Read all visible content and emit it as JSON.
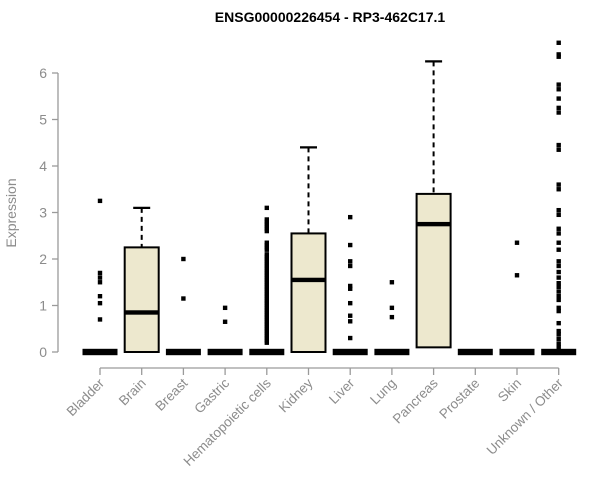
{
  "chart_data": {
    "type": "boxplot",
    "title": "ENSG00000226454 - RP3-462C17.1",
    "ylabel": "Expression",
    "xlabel": "",
    "ylim": [
      0,
      6.7
    ],
    "yticks": [
      0,
      1,
      2,
      3,
      4,
      5,
      6
    ],
    "grid": false,
    "legend": false,
    "categories": [
      "Bladder",
      "Brain",
      "Breast",
      "Gastric",
      "Hematopoietic cells",
      "Kidney",
      "Liver",
      "Lung",
      "Pancreas",
      "Prostate",
      "Skin",
      "Unknown / Other"
    ],
    "series": [
      {
        "category": "Bladder",
        "q1": 0,
        "median": 0,
        "q3": 0,
        "whisker_low": 0,
        "whisker_high": 0,
        "outliers": [
          3.25,
          1.7,
          1.6,
          1.5,
          1.2,
          1.05,
          0.7
        ]
      },
      {
        "category": "Brain",
        "q1": 0,
        "median": 0.85,
        "q3": 2.25,
        "whisker_low": 0,
        "whisker_high": 3.1,
        "outliers": []
      },
      {
        "category": "Breast",
        "q1": 0,
        "median": 0,
        "q3": 0,
        "whisker_low": 0,
        "whisker_high": 0,
        "outliers": [
          2.0,
          1.15
        ]
      },
      {
        "category": "Gastric",
        "q1": 0,
        "median": 0,
        "q3": 0,
        "whisker_low": 0,
        "whisker_high": 0,
        "outliers": [
          0.95,
          0.65
        ]
      },
      {
        "category": "Hematopoietic cells",
        "q1": 0,
        "median": 0,
        "q3": 0,
        "whisker_low": 0,
        "whisker_high": 0,
        "outliers": [
          3.1,
          2.85,
          2.8,
          2.75,
          2.7,
          2.65,
          2.6,
          2.35,
          2.3,
          2.25,
          2.2,
          2.1,
          2.05,
          2.0,
          1.95,
          1.9,
          1.85,
          1.8,
          1.75,
          1.7,
          1.65,
          1.6,
          1.55,
          1.5,
          1.45,
          1.4,
          1.35,
          1.3,
          1.25,
          1.2,
          1.15,
          1.1,
          1.05,
          1.0,
          0.95,
          0.9,
          0.85,
          0.8,
          0.75,
          0.7,
          0.65,
          0.6,
          0.55,
          0.5,
          0.45,
          0.4,
          0.35,
          0.3,
          0.25,
          0.2
        ]
      },
      {
        "category": "Kidney",
        "q1": 0,
        "median": 1.55,
        "q3": 2.55,
        "whisker_low": 0,
        "whisker_high": 4.4,
        "outliers": []
      },
      {
        "category": "Liver",
        "q1": 0,
        "median": 0,
        "q3": 0,
        "whisker_low": 0,
        "whisker_high": 0,
        "outliers": [
          2.9,
          2.3,
          1.95,
          1.85,
          1.42,
          1.36,
          1.05,
          0.78,
          0.66,
          0.3
        ]
      },
      {
        "category": "Lung",
        "q1": 0,
        "median": 0,
        "q3": 0,
        "whisker_low": 0,
        "whisker_high": 0,
        "outliers": [
          1.5,
          0.95,
          0.75
        ]
      },
      {
        "category": "Pancreas",
        "q1": 0.1,
        "median": 2.75,
        "q3": 3.4,
        "whisker_low": 0.1,
        "whisker_high": 6.25,
        "outliers": []
      },
      {
        "category": "Prostate",
        "q1": 0,
        "median": 0,
        "q3": 0,
        "whisker_low": 0,
        "whisker_high": 0,
        "outliers": []
      },
      {
        "category": "Skin",
        "q1": 0,
        "median": 0,
        "q3": 0,
        "whisker_low": 0,
        "whisker_high": 0,
        "outliers": [
          2.35,
          1.65
        ]
      },
      {
        "category": "Unknown / Other",
        "q1": 0,
        "median": 0,
        "q3": 0,
        "whisker_low": 0,
        "whisker_high": 0,
        "outliers": [
          6.65,
          6.4,
          6.35,
          5.75,
          5.65,
          5.45,
          5.25,
          5.15,
          4.45,
          4.35,
          3.6,
          3.5,
          3.05,
          2.95,
          2.65,
          2.55,
          2.35,
          2.2,
          1.95,
          1.85,
          1.72,
          1.6,
          1.48,
          1.4,
          1.3,
          1.2,
          1.12,
          0.95,
          0.88,
          0.62,
          0.45,
          0.38,
          0.28,
          0.18,
          0.1
        ]
      }
    ],
    "style": {
      "box_fill": "#EDE8CE",
      "box_border": "#000000",
      "median_color": "#000000",
      "outlier_color": "#000000",
      "whisker_color": "#000000",
      "axis_line_color": "#9a9a9a",
      "axis_text_color": "#8c8c8c",
      "title_color": "#000000",
      "background": "#ffffff"
    }
  }
}
